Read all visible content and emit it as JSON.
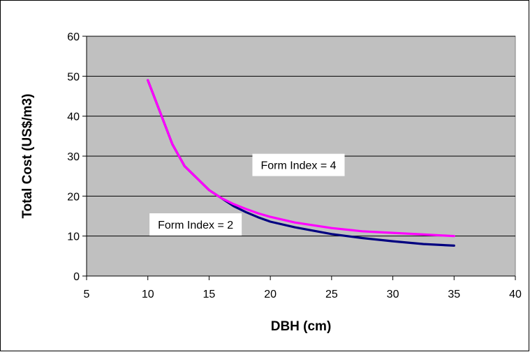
{
  "chart_data": {
    "type": "line",
    "title": "",
    "xlabel": "DBH (cm)",
    "ylabel": "Total Cost (US$/m3)",
    "xlim": [
      5,
      40
    ],
    "ylim": [
      0,
      60
    ],
    "x_ticks": [
      5,
      10,
      15,
      20,
      25,
      30,
      35,
      40
    ],
    "y_ticks": [
      0,
      10,
      20,
      30,
      40,
      50,
      60
    ],
    "grid": "horizontal",
    "plot_background": "#c0c0c0",
    "legend": "none",
    "series": [
      {
        "color": "#000080",
        "x": [
          10,
          11,
          12,
          13,
          14,
          15,
          16,
          17,
          18,
          19,
          20,
          22,
          25,
          27.5,
          30,
          32.5,
          35
        ],
        "y": [
          49,
          41,
          33,
          27.5,
          24.5,
          21.5,
          19.5,
          17.5,
          16,
          14.7,
          13.6,
          12.2,
          10.5,
          9.5,
          8.7,
          8.0,
          7.6
        ]
      },
      {
        "color": "#ff00ff",
        "x": [
          10,
          11,
          12,
          13,
          14,
          15,
          16,
          17,
          18,
          19,
          20,
          22,
          25,
          27.5,
          30,
          32.5,
          35
        ],
        "y": [
          49,
          41,
          33,
          27.5,
          24.5,
          21.5,
          19.5,
          18.0,
          16.8,
          15.7,
          14.8,
          13.4,
          12.0,
          11.2,
          10.8,
          10.4,
          10.0
        ]
      }
    ],
    "annotations": [
      {
        "text": "Form Index = 4",
        "x": 22.3,
        "y": 27.8
      },
      {
        "text": "Form Index = 2",
        "x": 13.9,
        "y": 12.9
      }
    ]
  }
}
